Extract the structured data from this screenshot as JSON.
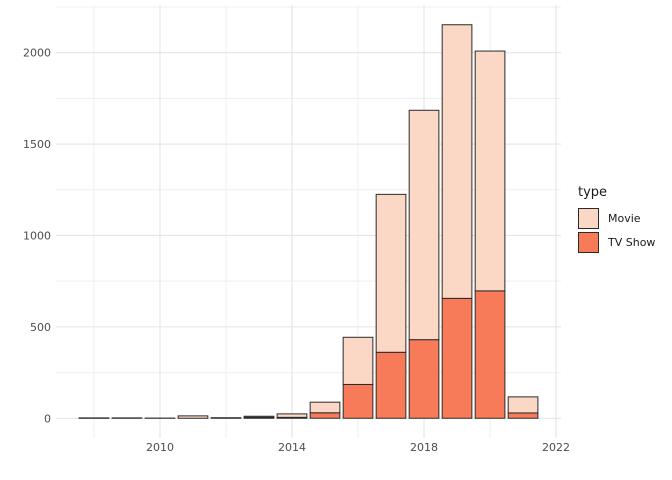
{
  "figure": {
    "background": "#ffffff",
    "legend": {
      "title": "type",
      "entries": [
        {
          "label": "Movie",
          "color": "#FBD8C6"
        },
        {
          "label": "TV Show",
          "color": "#F87B59"
        }
      ]
    }
  },
  "chart_data": {
    "type": "bar",
    "stacked": true,
    "title": "",
    "xlabel": "",
    "ylabel": "",
    "categories": [
      2008,
      2009,
      2010,
      2011,
      2012,
      2013,
      2014,
      2015,
      2016,
      2017,
      2018,
      2019,
      2020,
      2021
    ],
    "series": [
      {
        "name": "Movie",
        "color": "#FBD8C6",
        "values": [
          1,
          2,
          1,
          13,
          3,
          6,
          19,
          58,
          258,
          864,
          1255,
          1497,
          1312,
          88
        ]
      },
      {
        "name": "TV Show",
        "color": "#F87B59",
        "values": [
          1,
          0,
          0,
          0,
          0,
          5,
          5,
          30,
          185,
          361,
          430,
          656,
          697,
          29
        ]
      }
    ],
    "stack_bottom_series": "TV Show",
    "bar_outline_color": "#2B2B2B",
    "bar_width_ratio": 0.9,
    "x_axis": {
      "tick_labels": [
        "2010",
        "2014",
        "2018",
        "2022"
      ],
      "tick_positions": [
        2010,
        2014,
        2018,
        2022
      ],
      "minor_positions": [
        2008,
        2012,
        2016,
        2020
      ],
      "lim": [
        2006.85,
        2022.15
      ]
    },
    "y_axis": {
      "tick_labels": [
        "0",
        "500",
        "1000",
        "1500",
        "2000"
      ],
      "tick_positions": [
        0,
        500,
        1000,
        1500,
        2000
      ],
      "minor_positions": [
        250,
        750,
        1250,
        1750,
        2250
      ],
      "lim": [
        -108,
        2261
      ]
    },
    "grid": {
      "major_color": "#E4E4E4",
      "minor_color": "#EFEFEF"
    },
    "text_color": "#4D4D4D",
    "legend_position": "right"
  }
}
